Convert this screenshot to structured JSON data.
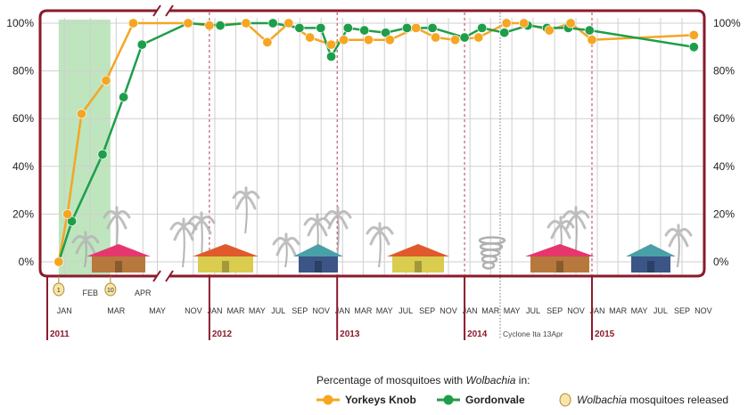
{
  "chart_data": {
    "type": "line",
    "ylim": [
      0,
      100
    ],
    "y_ticks": [
      "0%",
      "20%",
      "40%",
      "60%",
      "80%",
      "100%"
    ],
    "grid": true,
    "axis_break_after": "Apr 2011",
    "x_months": [
      {
        "label": "JAN",
        "date": "2011-01"
      },
      {
        "label": "FEB",
        "date": "2011-02"
      },
      {
        "label": "MAR",
        "date": "2011-03"
      },
      {
        "label": "APR",
        "date": "2011-04"
      },
      {
        "label": "MAY",
        "date": "2011-05"
      },
      {
        "label": "NOV",
        "date": "2011-11"
      },
      {
        "label": "JAN",
        "date": "2012-01"
      },
      {
        "label": "MAR",
        "date": "2012-03"
      },
      {
        "label": "MAY",
        "date": "2012-05"
      },
      {
        "label": "JUL",
        "date": "2012-07"
      },
      {
        "label": "SEP",
        "date": "2012-09"
      },
      {
        "label": "NOV",
        "date": "2012-11"
      },
      {
        "label": "JAN",
        "date": "2013-01"
      },
      {
        "label": "MAR",
        "date": "2013-03"
      },
      {
        "label": "MAY",
        "date": "2013-05"
      },
      {
        "label": "JUL",
        "date": "2013-07"
      },
      {
        "label": "SEP",
        "date": "2013-09"
      },
      {
        "label": "NOV",
        "date": "2013-11"
      },
      {
        "label": "JAN",
        "date": "2014-01"
      },
      {
        "label": "MAR",
        "date": "2014-03"
      },
      {
        "label": "MAY",
        "date": "2014-05"
      },
      {
        "label": "JUL",
        "date": "2014-07"
      },
      {
        "label": "SEP",
        "date": "2014-09"
      },
      {
        "label": "NOV",
        "date": "2014-11"
      },
      {
        "label": "JAN",
        "date": "2015-01"
      },
      {
        "label": "MAR",
        "date": "2015-03"
      },
      {
        "label": "MAY",
        "date": "2015-05"
      },
      {
        "label": "JUL",
        "date": "2015-07"
      },
      {
        "label": "SEP",
        "date": "2015-09"
      },
      {
        "label": "NOV",
        "date": "2015-11"
      }
    ],
    "years": [
      {
        "label": "2011",
        "date": "2011-01"
      },
      {
        "label": "2012",
        "date": "2012-01"
      },
      {
        "label": "2013",
        "date": "2013-01"
      },
      {
        "label": "2014",
        "date": "2014-01"
      },
      {
        "label": "2015",
        "date": "2015-01"
      }
    ],
    "release_period": {
      "start": "2011-01-10",
      "end": "2011-03-10"
    },
    "release_markers": [
      {
        "label": "1",
        "date": "2011-01-10"
      },
      {
        "label": "10",
        "date": "2011-03-10"
      }
    ],
    "annotation": {
      "text": "Cyclone Ita 13Apr",
      "date": "2014-04-13"
    },
    "series": [
      {
        "name": "Yorkeys Knob",
        "color": "#f5a623",
        "points": [
          {
            "x": "2011-01-10",
            "y": 0
          },
          {
            "x": "2011-01-20",
            "y": 20
          },
          {
            "x": "2011-02-05",
            "y": 62
          },
          {
            "x": "2011-03-05",
            "y": 76
          },
          {
            "x": "2011-04-05",
            "y": 100
          },
          {
            "x": "2011-11-01",
            "y": 100
          },
          {
            "x": "2012-01-01",
            "y": 99
          },
          {
            "x": "2012-04-15",
            "y": 100
          },
          {
            "x": "2012-06-15",
            "y": 92
          },
          {
            "x": "2012-08-15",
            "y": 100
          },
          {
            "x": "2012-10-15",
            "y": 94
          },
          {
            "x": "2012-12-15",
            "y": 91
          },
          {
            "x": "2013-01-20",
            "y": 93
          },
          {
            "x": "2013-04-01",
            "y": 93
          },
          {
            "x": "2013-06-01",
            "y": 93
          },
          {
            "x": "2013-08-15",
            "y": 98
          },
          {
            "x": "2013-10-10",
            "y": 94
          },
          {
            "x": "2013-12-05",
            "y": 93
          },
          {
            "x": "2014-02-10",
            "y": 94
          },
          {
            "x": "2014-05-01",
            "y": 100
          },
          {
            "x": "2014-06-20",
            "y": 100
          },
          {
            "x": "2014-09-01",
            "y": 97
          },
          {
            "x": "2014-11-01",
            "y": 100
          },
          {
            "x": "2015-01-01",
            "y": 93
          },
          {
            "x": "2015-10-20",
            "y": 95
          }
        ]
      },
      {
        "name": "Gordonvale",
        "color": "#1e9e4a",
        "points": [
          {
            "x": "2011-01-10",
            "y": 0
          },
          {
            "x": "2011-01-25",
            "y": 17
          },
          {
            "x": "2011-03-01",
            "y": 45
          },
          {
            "x": "2011-03-25",
            "y": 69
          },
          {
            "x": "2011-04-15",
            "y": 91
          },
          {
            "x": "2011-11-01",
            "y": 100
          },
          {
            "x": "2012-02-01",
            "y": 99
          },
          {
            "x": "2012-04-15",
            "y": 100
          },
          {
            "x": "2012-07-01",
            "y": 100
          },
          {
            "x": "2012-09-15",
            "y": 98
          },
          {
            "x": "2012-11-15",
            "y": 98
          },
          {
            "x": "2012-12-15",
            "y": 86
          },
          {
            "x": "2013-02-01",
            "y": 98
          },
          {
            "x": "2013-03-20",
            "y": 97
          },
          {
            "x": "2013-05-20",
            "y": 96
          },
          {
            "x": "2013-07-20",
            "y": 98
          },
          {
            "x": "2013-10-01",
            "y": 98
          },
          {
            "x": "2014-01-01",
            "y": 94
          },
          {
            "x": "2014-02-20",
            "y": 98
          },
          {
            "x": "2014-04-25",
            "y": 96
          },
          {
            "x": "2014-07-01",
            "y": 99
          },
          {
            "x": "2014-08-25",
            "y": 98
          },
          {
            "x": "2014-10-25",
            "y": 98
          },
          {
            "x": "2014-12-25",
            "y": 97
          },
          {
            "x": "2015-10-20",
            "y": 90
          }
        ]
      }
    ]
  },
  "legend": {
    "title_prefix": "Percentage of mosquitoes with ",
    "title_italic": "Wolbachia",
    "title_suffix": " in:",
    "items": [
      "Yorkeys Knob",
      "Gordonvale"
    ],
    "release_note_italic": "Wolbachia",
    "release_note_suffix": " mosquitoes released"
  },
  "colors": {
    "frame": "#8b1a2b",
    "grid": "#cfcfcf",
    "release_band": "#a8dca8",
    "year_divider": "#b04050"
  },
  "icons": [
    "house-icon",
    "palm-tree-icon",
    "cyclone-icon"
  ]
}
